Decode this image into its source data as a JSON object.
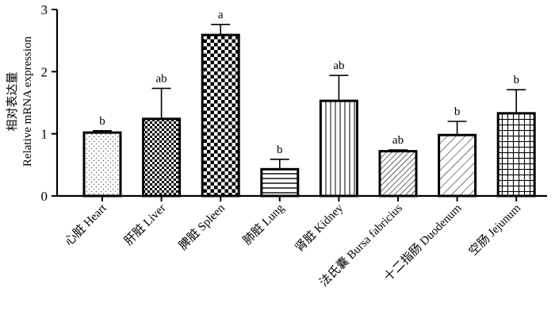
{
  "chart_data": {
    "type": "bar",
    "title": "",
    "xlabel": "",
    "ylabel_cn": "相对表达量",
    "ylabel": "Relative mRNA expression",
    "ylim": [
      0,
      3
    ],
    "yticks": [
      "0",
      "1",
      "2",
      "3"
    ],
    "grid": false,
    "legend": "none",
    "categories": [
      "心脏 Heart",
      "肝脏 Liver",
      "脾脏 Spleen",
      "肺脏 Lung",
      "肾脏 Kidney",
      "法氏囊 Bursa fabricius",
      "十二指肠 Duodenum",
      "空肠 Jejunum"
    ],
    "values": [
      1.02,
      1.24,
      2.59,
      0.43,
      1.53,
      0.72,
      0.98,
      1.33
    ],
    "errors": [
      0.03,
      0.49,
      0.17,
      0.16,
      0.41,
      0.02,
      0.22,
      0.38
    ],
    "significance": [
      "b",
      "ab",
      "a",
      "b",
      "ab",
      "ab",
      "b",
      "b"
    ],
    "patterns": [
      "dots",
      "checker-small",
      "checker-large",
      "hlines",
      "vlines",
      "diag-dense",
      "diag-sparse",
      "grid"
    ]
  }
}
